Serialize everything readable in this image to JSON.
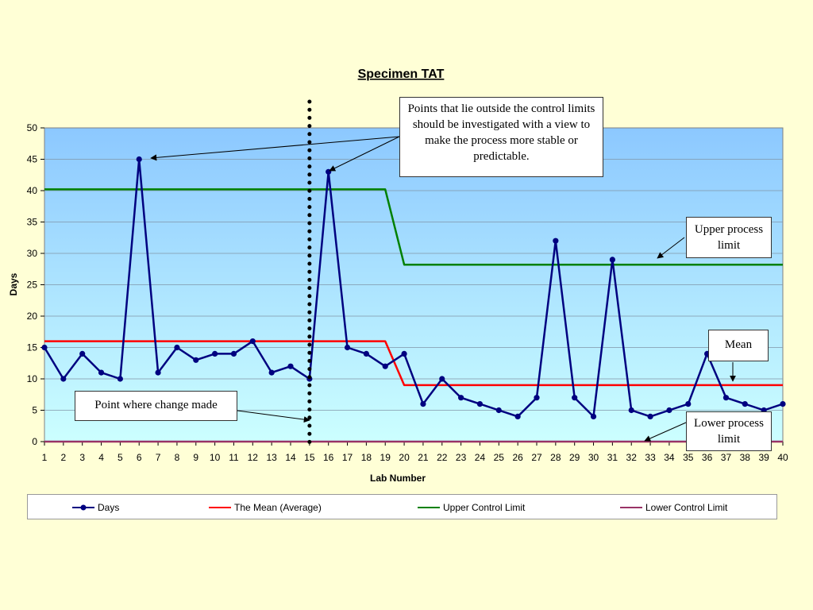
{
  "chart_data": {
    "type": "line",
    "title": "Specimen TAT",
    "xlabel": "Lab Number",
    "ylabel": "Days",
    "ylim": [
      0,
      50
    ],
    "yticks": [
      0,
      5,
      10,
      15,
      20,
      25,
      30,
      35,
      40,
      45,
      50
    ],
    "x": [
      1,
      2,
      3,
      4,
      5,
      6,
      7,
      8,
      9,
      10,
      11,
      12,
      13,
      14,
      15,
      16,
      17,
      18,
      19,
      20,
      21,
      22,
      23,
      24,
      25,
      26,
      27,
      28,
      29,
      30,
      31,
      32,
      33,
      34,
      35,
      36,
      37,
      38,
      39,
      40
    ],
    "series": [
      {
        "name": "Days",
        "color": "#000080",
        "marker": "circle",
        "values": [
          15,
          10,
          14,
          11,
          10,
          45,
          11,
          15,
          13,
          14,
          14,
          16,
          11,
          12,
          10,
          43,
          15,
          14,
          12,
          14,
          6,
          10,
          7,
          6,
          5,
          4,
          7,
          32,
          7,
          4,
          29,
          5,
          4,
          5,
          6,
          14,
          7,
          6,
          5,
          6
        ]
      },
      {
        "name": "The Mean (Average)",
        "color": "#ff0000",
        "values": [
          16,
          16,
          16,
          16,
          16,
          16,
          16,
          16,
          16,
          16,
          16,
          16,
          16,
          16,
          16,
          16,
          16,
          16,
          16,
          9,
          9,
          9,
          9,
          9,
          9,
          9,
          9,
          9,
          9,
          9,
          9,
          9,
          9,
          9,
          9,
          9,
          9,
          9,
          9,
          9
        ]
      },
      {
        "name": "Upper Control Limit",
        "color": "#008000",
        "values": [
          40.2,
          40.2,
          40.2,
          40.2,
          40.2,
          40.2,
          40.2,
          40.2,
          40.2,
          40.2,
          40.2,
          40.2,
          40.2,
          40.2,
          40.2,
          40.2,
          40.2,
          40.2,
          40.2,
          28.2,
          28.2,
          28.2,
          28.2,
          28.2,
          28.2,
          28.2,
          28.2,
          28.2,
          28.2,
          28.2,
          28.2,
          28.2,
          28.2,
          28.2,
          28.2,
          28.2,
          28.2,
          28.2,
          28.2,
          28.2
        ]
      },
      {
        "name": "Lower Control Limit",
        "color": "#993366",
        "values": [
          0,
          0,
          0,
          0,
          0,
          0,
          0,
          0,
          0,
          0,
          0,
          0,
          0,
          0,
          0,
          0,
          0,
          0,
          0,
          0,
          0,
          0,
          0,
          0,
          0,
          0,
          0,
          0,
          0,
          0,
          0,
          0,
          0,
          0,
          0,
          0,
          0,
          0,
          0,
          0
        ]
      }
    ],
    "change_point_x": 15,
    "plot_background": {
      "top": "#8cc8ff",
      "bottom": "#ccffff"
    },
    "grid": true,
    "legend_position": "bottom",
    "annotations": {
      "investigate": "Points that lie outside the control limits should be investigated with a view to make the process more stable or predictable.",
      "ucl": "Upper process limit",
      "mean": "Mean",
      "lcl": "Lower process limit",
      "change": "Point where change made"
    }
  }
}
